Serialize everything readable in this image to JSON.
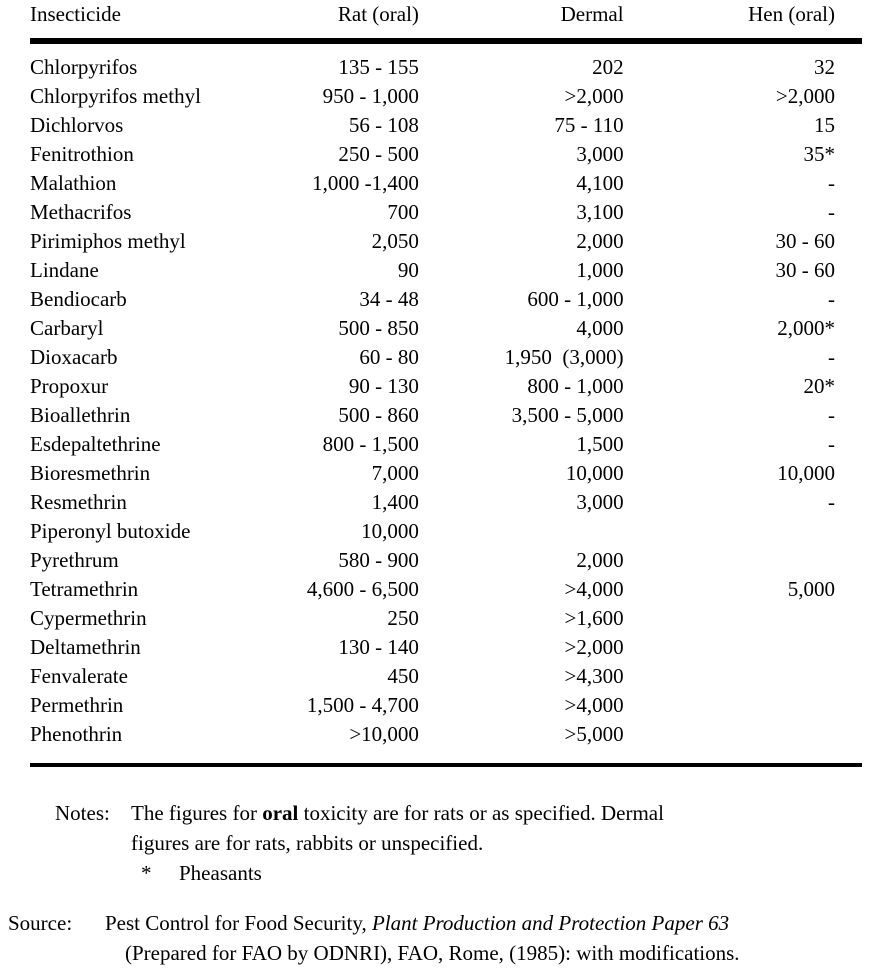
{
  "table": {
    "columns": [
      "Insecticide",
      "Rat (oral)",
      "Dermal",
      "Hen (oral)"
    ],
    "rows": [
      [
        "Chlorpyrifos",
        "135 - 155",
        "202",
        "32"
      ],
      [
        "Chlorpyrifos methyl",
        "950 - 1,000",
        ">2,000",
        ">2,000"
      ],
      [
        "Dichlorvos",
        "56 - 108",
        "75 - 110",
        "15"
      ],
      [
        "Fenitrothion",
        "250 - 500",
        "3,000",
        "35*"
      ],
      [
        "Malathion",
        "1,000 -1,400",
        "4,100",
        "-"
      ],
      [
        "Methacrifos",
        "700",
        "3,100",
        "-"
      ],
      [
        "Pirimiphos methyl",
        "2,050",
        "2,000",
        "30 - 60"
      ],
      [
        "Lindane",
        "90",
        "1,000",
        "30 - 60"
      ],
      [
        "Bendiocarb",
        "34 - 48",
        "600 - 1,000",
        "-"
      ],
      [
        "Carbaryl",
        "500 - 850",
        "4,000",
        "2,000*"
      ],
      [
        "Dioxacarb",
        "60 - 80",
        "1,950  (3,000)",
        "-"
      ],
      [
        "Propoxur",
        "90 - 130",
        "800 - 1,000",
        "20*"
      ],
      [
        "Bioallethrin",
        "500 - 860",
        "3,500 - 5,000",
        "-"
      ],
      [
        "Esdepaltethrine",
        "800 - 1,500",
        "1,500",
        "-"
      ],
      [
        "Bioresmethrin",
        "7,000",
        "10,000",
        "10,000"
      ],
      [
        "Resmethrin",
        "1,400",
        "3,000",
        "-"
      ],
      [
        "Piperonyl butoxide",
        "10,000",
        "",
        ""
      ],
      [
        "Pyrethrum",
        "580 - 900",
        "2,000",
        ""
      ],
      [
        "Tetramethrin",
        "4,600 - 6,500",
        ">4,000",
        "5,000"
      ],
      [
        "Cypermethrin",
        "250",
        ">1,600",
        ""
      ],
      [
        "Deltamethrin",
        "130 - 140",
        ">2,000",
        ""
      ],
      [
        "Fenvalerate",
        "450",
        ">4,300",
        ""
      ],
      [
        "Permethrin",
        "1,500 - 4,700",
        ">4,000",
        ""
      ],
      [
        "Phenothrin",
        ">10,000",
        ">5,000",
        ""
      ]
    ]
  },
  "notes": {
    "label": "Notes:",
    "line1_pre": "The figures for ",
    "line1_bold": "oral",
    "line1_post": " toxicity are for rats or as specified. Dermal",
    "line2": "figures are for rats, rabbits or unspecified.",
    "asterisk": "*",
    "asterisk_text": "Pheasants"
  },
  "source": {
    "label": "Source:",
    "line1_pre": "Pest Control for Food Security, ",
    "line1_italic": "Plant Production and Protection Paper 63",
    "line2": "(Prepared for FAO by ODNRI), FAO, Rome, (1985): with modifications."
  },
  "colors": {
    "text": "#000000",
    "background": "#ffffff"
  }
}
